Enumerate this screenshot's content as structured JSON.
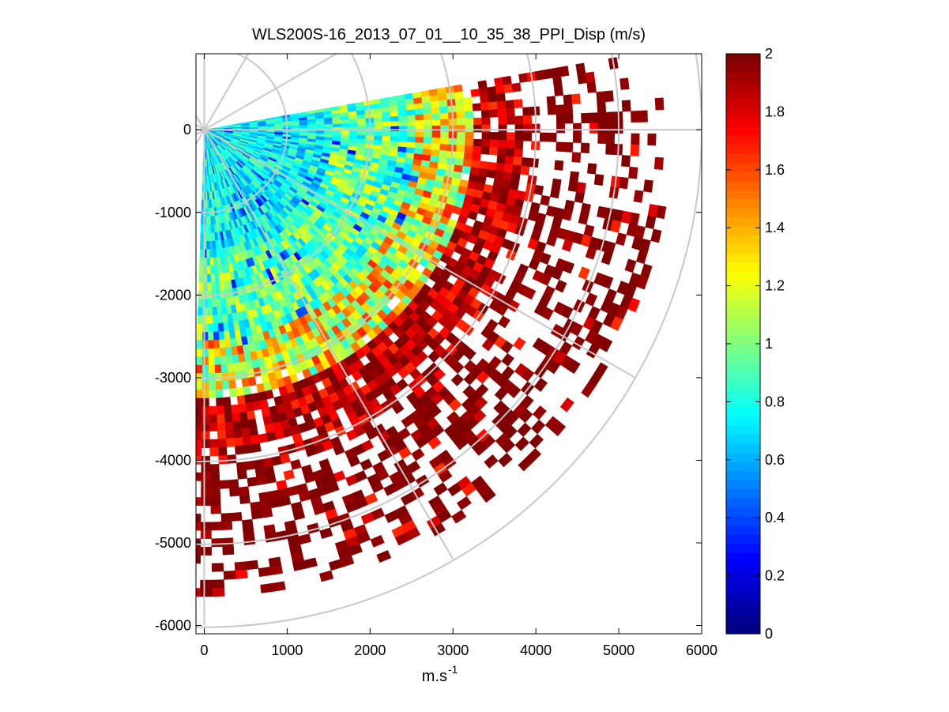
{
  "chart_data": {
    "type": "heatmap",
    "subtype": "polar-ppi-scan",
    "title": "WLS200S-16_2013_07_01__10_35_38_PPI_Disp (m/s)",
    "xlabel_base": "m.s",
    "xlabel_exponent": "-1",
    "ylabel": "",
    "xlim": [
      -100,
      6000
    ],
    "ylim": [
      -6100,
      920
    ],
    "x_ticks": [
      "0",
      "1000",
      "2000",
      "3000",
      "4000",
      "5000",
      "6000"
    ],
    "x_tick_values": [
      0,
      1000,
      2000,
      3000,
      4000,
      5000,
      6000
    ],
    "y_ticks": [
      "0",
      "-1000",
      "-2000",
      "-3000",
      "-4000",
      "-5000",
      "-6000"
    ],
    "y_tick_values": [
      0,
      -1000,
      -2000,
      -3000,
      -4000,
      -5000,
      -6000
    ],
    "polar_grid": {
      "ring_radii": [
        1000,
        2000,
        3000,
        4000,
        5000,
        6000
      ],
      "spoke_angles_deg": [
        0,
        30,
        60,
        90,
        120,
        150,
        180,
        210,
        240,
        270,
        300,
        330
      ]
    },
    "scan": {
      "azimuth_start_deg": 10,
      "azimuth_end_deg": -92,
      "azimuth_step_deg": 1.5,
      "max_range": 5600,
      "gate_step": 100,
      "value_zones": [
        {
          "range_to": 1500,
          "level": 0.75,
          "spread": 0.25
        },
        {
          "range_to": 2500,
          "level": 0.95,
          "spread": 0.3
        },
        {
          "range_to": 3200,
          "level": 1.25,
          "spread": 0.45
        },
        {
          "range_to": 4000,
          "level": 1.9,
          "spread": 0.25
        },
        {
          "range_to": 5600,
          "level": 2.0,
          "spread": 0.05
        }
      ],
      "missing_fraction_far": 0.6
    },
    "colorbar": {
      "min": 0,
      "max": 2,
      "colormap": "jet",
      "ticks": [
        "0",
        "0.2",
        "0.4",
        "0.6",
        "0.8",
        "1",
        "1.2",
        "1.4",
        "1.6",
        "1.8",
        "2"
      ],
      "tick_values": [
        0,
        0.2,
        0.4,
        0.6,
        0.8,
        1,
        1.2,
        1.4,
        1.6,
        1.8,
        2
      ]
    },
    "grid_color": "#c8c8c8",
    "background": "#ffffff"
  }
}
